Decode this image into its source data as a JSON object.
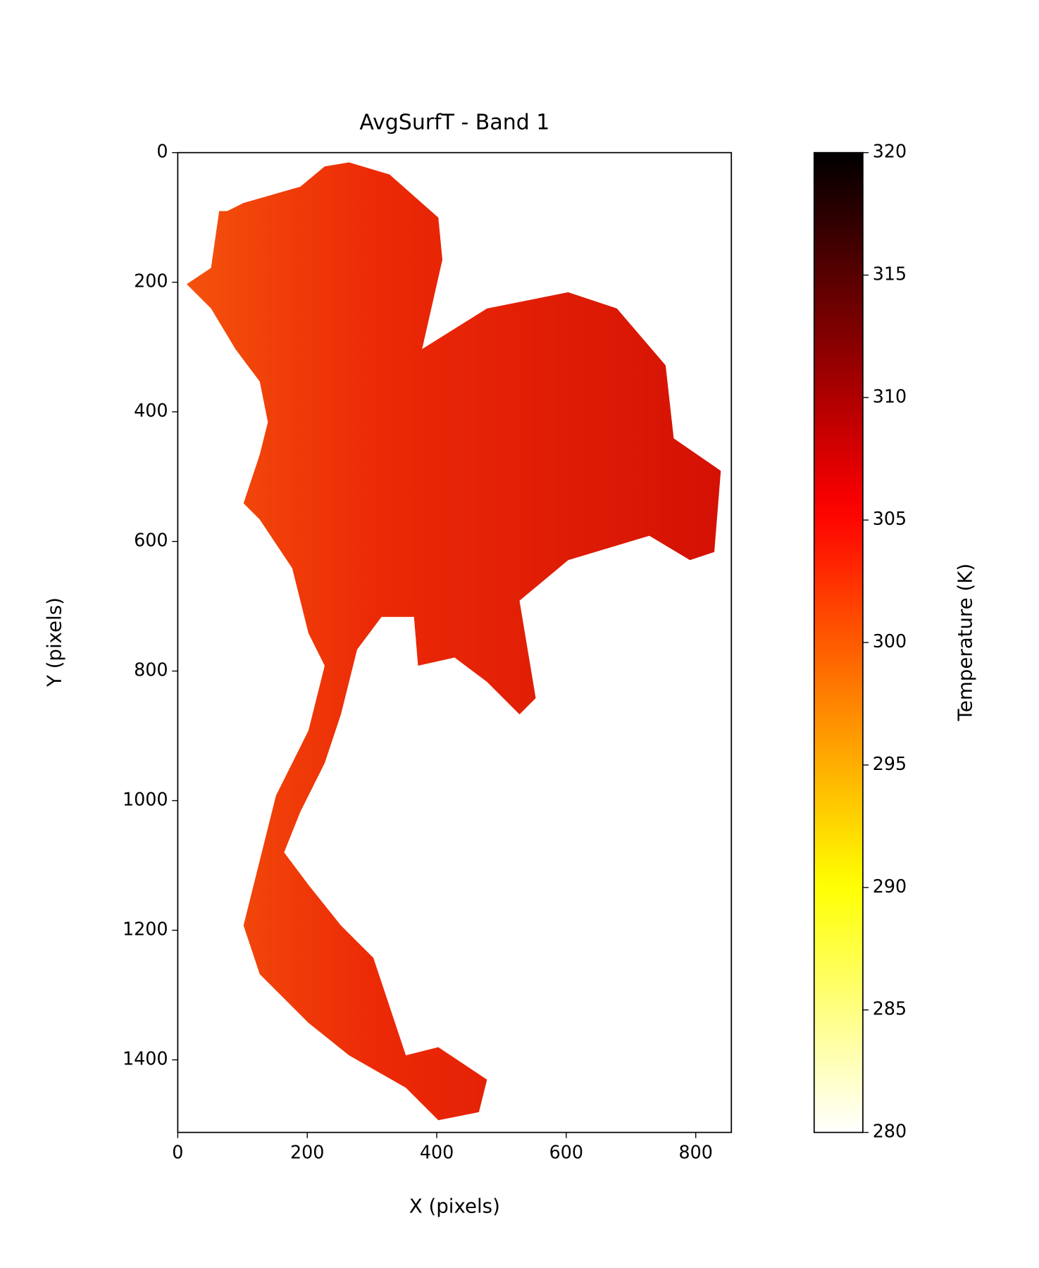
{
  "chart_data": {
    "type": "heatmap",
    "title": "AvgSurfT - Band 1",
    "xlabel": "X (pixels)",
    "ylabel": "Y (pixels)",
    "xlim": [
      0,
      855
    ],
    "ylim": [
      1512,
      0
    ],
    "xticks": [
      0,
      200,
      400,
      600,
      800
    ],
    "yticks": [
      0,
      200,
      400,
      600,
      800,
      1000,
      1200,
      1400
    ],
    "colorbar": {
      "label": "Temperature (K)",
      "colormap": "hot_r",
      "clim": [
        280,
        320
      ],
      "ticks": [
        280,
        285,
        290,
        295,
        300,
        305,
        310,
        315,
        320
      ]
    }
  }
}
